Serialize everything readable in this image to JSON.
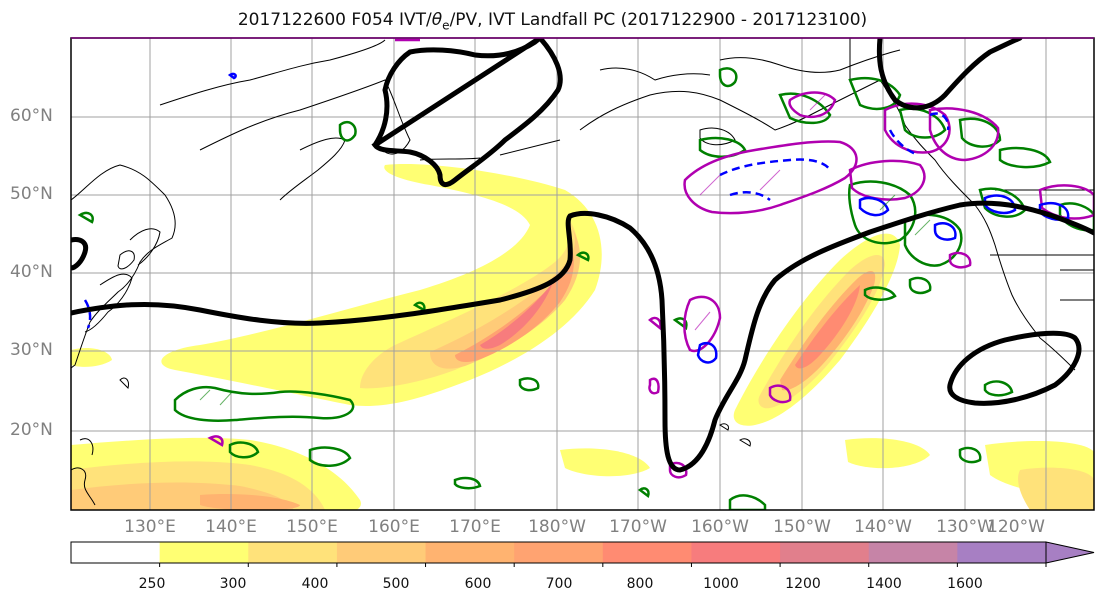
{
  "title": {
    "prefix": "2017122600 F054 IVT/",
    "theta": "θ",
    "sub": "e",
    "suffix": "/PV, IVT Landfall PC (2017122900 - 2017123100)"
  },
  "lat_labels": [
    "60°N",
    "50°N",
    "40°N",
    "30°N",
    "20°N"
  ],
  "lon_labels": [
    "130°E",
    "140°E",
    "150°E",
    "160°E",
    "170°E",
    "180°W",
    "170°W",
    "160°W",
    "150°W",
    "140°W",
    "130°W",
    "120°W"
  ],
  "colorbar": {
    "ticks": [
      "250",
      "300",
      "400",
      "500",
      "600",
      "700",
      "800",
      "1000",
      "1200",
      "1400",
      "1600"
    ],
    "colors": [
      "#ffffff",
      "#ffff73",
      "#ffe27a",
      "#ffcb78",
      "#ffb370",
      "#ffa371",
      "#ff8b72",
      "#f77c7d",
      "#e17f8c",
      "#c684a7",
      "#a77fc3"
    ]
  },
  "colors": {
    "contour_black": "#000000",
    "contour_green": "#008000",
    "contour_blue": "#0000ff",
    "contour_magenta": "#b000b0",
    "coast": "#000000",
    "grid": "#a0a0a0"
  }
}
